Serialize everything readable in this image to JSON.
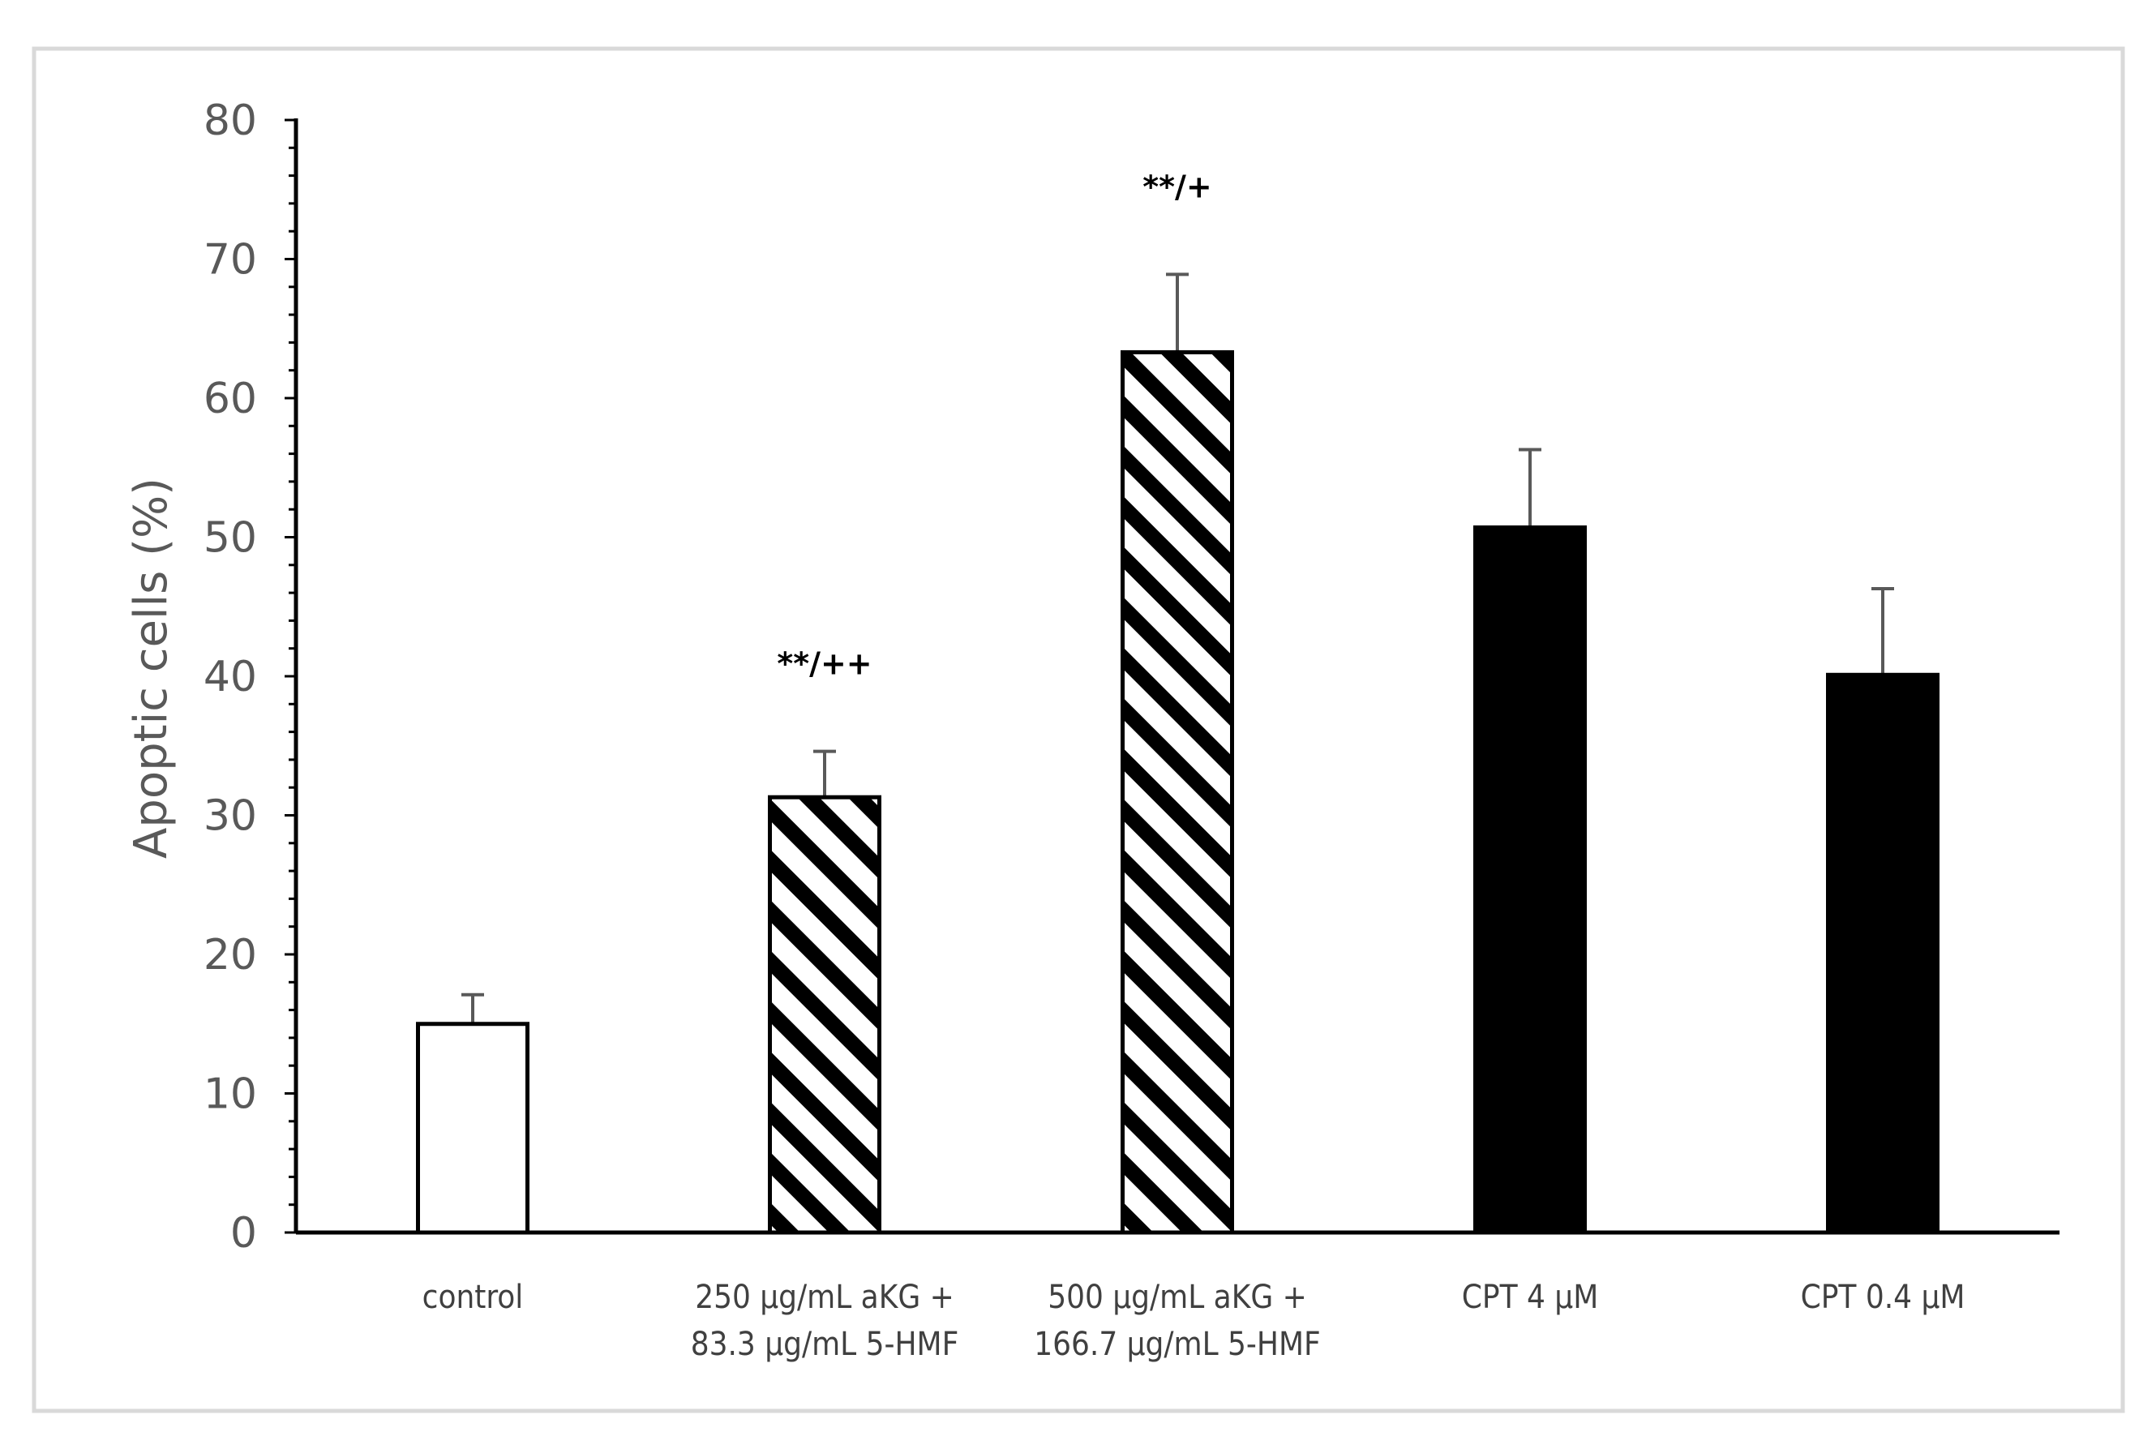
{
  "chart_data": {
    "type": "bar",
    "title": "",
    "xlabel": "",
    "ylabel": "Apoptic cells (%)",
    "ylim": [
      0,
      80
    ],
    "y_major_step": 10,
    "y_minor_step": 2,
    "grid": false,
    "legend": "none",
    "y_ticks": [
      "0",
      "10",
      "20",
      "30",
      "40",
      "50",
      "60",
      "70",
      "80"
    ],
    "categories": [
      [
        "control"
      ],
      [
        "250 µg/mL aKG +",
        "83.3 µg/mL 5-HMF"
      ],
      [
        "500 µg/mL aKG +",
        "166.7 µg/mL 5-HMF"
      ],
      [
        "CPT 4 µM"
      ],
      [
        "CPT 0.4 µM"
      ]
    ],
    "values": [
      15.0,
      31.3,
      63.3,
      50.7,
      40.1
    ],
    "errors": [
      2.1,
      3.3,
      5.6,
      5.6,
      6.2
    ],
    "fills": [
      "white",
      "hatched",
      "hatched",
      "black",
      "black"
    ],
    "annotations": [
      "",
      "**/++",
      "**/+",
      "",
      ""
    ],
    "colors": {
      "bar_outline": "#000000",
      "bar_black": "#000000",
      "bar_white": "#ffffff",
      "error_bar": "#595959",
      "axis_text": "#595959",
      "frame": "#d9d9d9"
    }
  }
}
